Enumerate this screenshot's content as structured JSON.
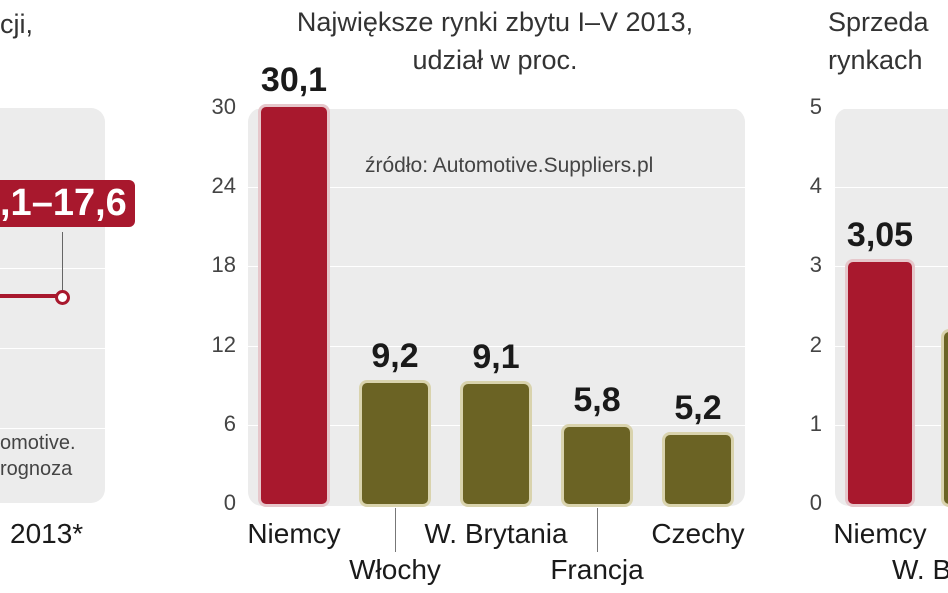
{
  "left_panel": {
    "title_fragment": "cji,",
    "badge_text": ",1–17,6",
    "note_line1": "omotive.",
    "note_line2": "rognoza",
    "x_label": "2013*",
    "colors": {
      "accent": "#a8182d"
    }
  },
  "chart_data": [
    {
      "type": "bar",
      "title": "Największe rynki zbytu I–V 2013,",
      "subtitle": "udział w proc.",
      "source": "źródło: Automotive.Suppliers.pl",
      "categories": [
        "Niemcy",
        "Włochy",
        "W. Brytania",
        "Francja",
        "Czechy"
      ],
      "values": [
        30.1,
        9.2,
        9.1,
        5.8,
        5.2
      ],
      "value_labels": [
        "30,1",
        "9,2",
        "9,1",
        "5,8",
        "5,2"
      ],
      "bar_colors": [
        "#a8182d",
        "#6b6324",
        "#6b6324",
        "#6b6324",
        "#6b6324"
      ],
      "yticks": [
        "30",
        "24",
        "18",
        "12",
        "6",
        "0"
      ],
      "ylim": [
        0,
        30
      ],
      "grid": true,
      "xlabel": "",
      "ylabel": ""
    },
    {
      "type": "bar",
      "title": "Sprzeda",
      "subtitle": "rynkach",
      "categories_visible": [
        "Niemcy",
        "W. B"
      ],
      "values": [
        3.05
      ],
      "value_labels": [
        "3,05"
      ],
      "bar_colors": [
        "#a8182d"
      ],
      "yticks": [
        "5",
        "4",
        "3",
        "2",
        "1",
        "0"
      ],
      "ylim": [
        0,
        5
      ],
      "grid": true,
      "xlabel": "",
      "ylabel": ""
    }
  ]
}
